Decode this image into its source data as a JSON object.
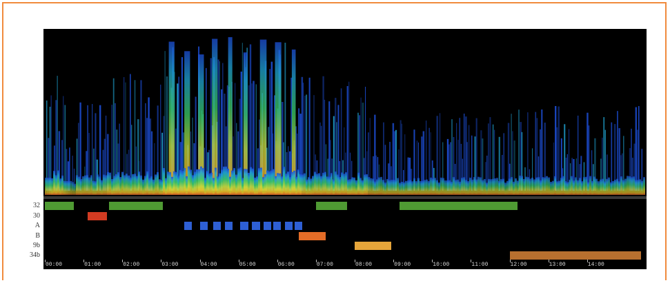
{
  "colors": {
    "frame": "#f08a3c",
    "background": "#000000",
    "track_32": "#4f9a33",
    "track_30": "#d23b22",
    "track_A": "#2e5fd4",
    "track_B": "#e36c27",
    "track_9b": "#e6a53a",
    "track_34b": "#b8702f"
  },
  "spectrogram": {
    "colormap": [
      "#0b1a8a",
      "#1d4fd8",
      "#20a6d6",
      "#3ccf6a",
      "#c9e23a",
      "#f2c52a",
      "#e8642a"
    ]
  },
  "tracks": {
    "rows": [
      {
        "id": "32",
        "label": "32",
        "color": "#4f9a33",
        "segments": [
          [
            0.0,
            0.45
          ],
          [
            0.45,
            0.75
          ],
          [
            1.65,
            3.05
          ],
          [
            7.0,
            7.8
          ],
          [
            9.15,
            10.8
          ],
          [
            10.8,
            12.2
          ]
        ]
      },
      {
        "id": "30",
        "label": "30",
        "color": "#d23b22",
        "segments": [
          [
            1.1,
            1.6
          ]
        ]
      },
      {
        "id": "A",
        "label": "A",
        "color": "#2e5fd4",
        "segments": [
          [
            3.6,
            3.8
          ],
          [
            4.0,
            4.2
          ],
          [
            4.35,
            4.55
          ],
          [
            4.65,
            4.85
          ],
          [
            5.05,
            5.25
          ],
          [
            5.35,
            5.55
          ],
          [
            5.65,
            5.85
          ],
          [
            5.9,
            6.1
          ],
          [
            6.2,
            6.4
          ],
          [
            6.45,
            6.65
          ]
        ]
      },
      {
        "id": "B",
        "label": "B",
        "color": "#e36c27",
        "segments": [
          [
            6.55,
            7.25
          ]
        ]
      },
      {
        "id": "9b",
        "label": "9b",
        "color": "#e6a53a",
        "segments": [
          [
            8.0,
            8.95
          ]
        ]
      },
      {
        "id": "34b",
        "label": "34b",
        "color": "#b8702f",
        "segments": [
          [
            12.0,
            15.4
          ]
        ]
      }
    ]
  },
  "time_axis": {
    "min": 0,
    "max": 15.5,
    "ticks": [
      "00:00",
      "01:00",
      "02:00",
      "03:00",
      "04:00",
      "05:00",
      "06:00",
      "07:00",
      "08:00",
      "09:00",
      "10:00",
      "11:00",
      "12:00",
      "13:00",
      "14:00"
    ]
  }
}
